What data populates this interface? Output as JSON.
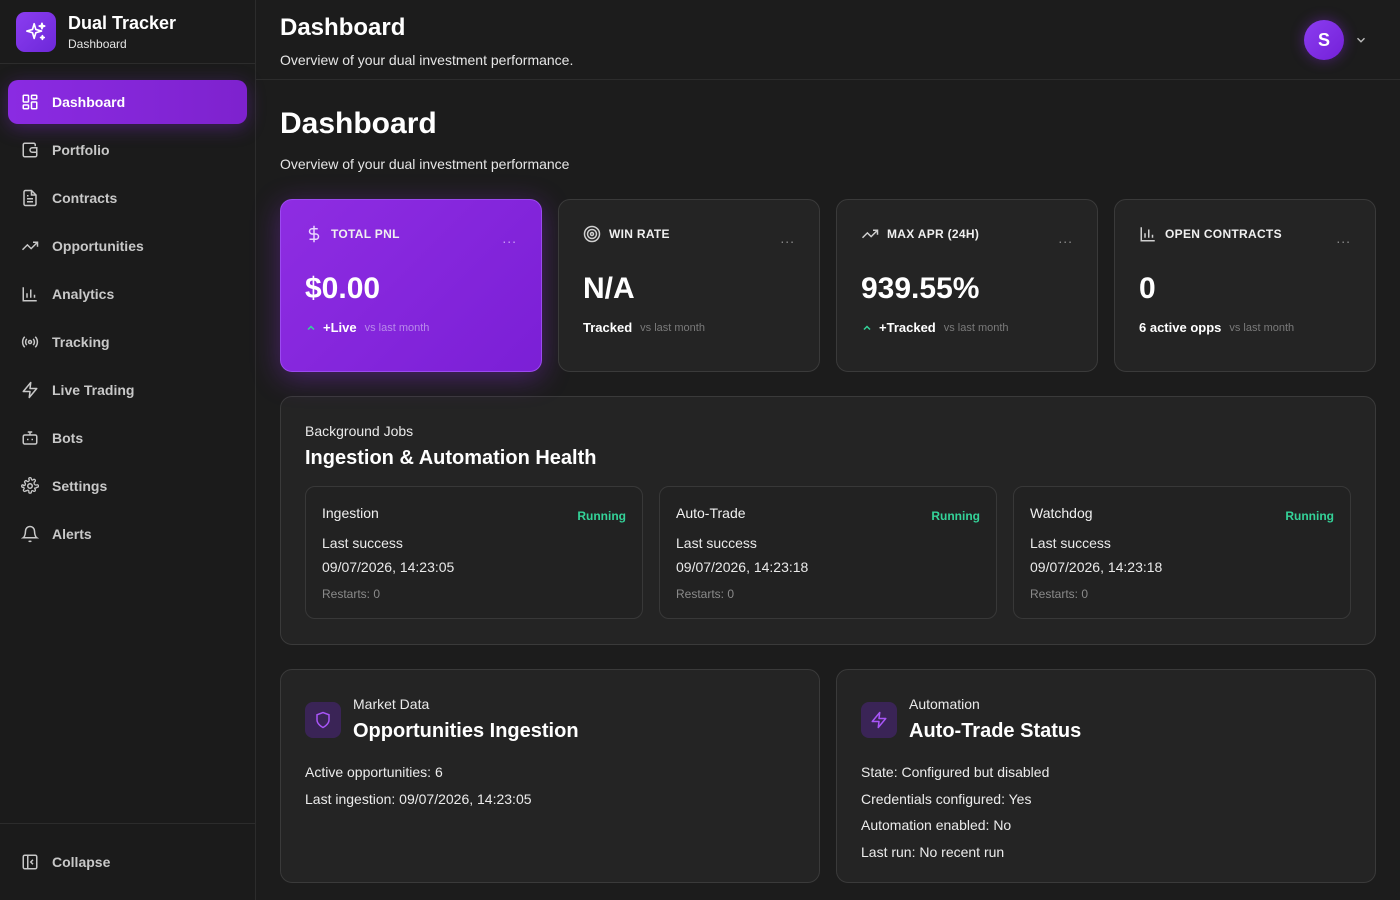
{
  "brand": {
    "title": "Dual Tracker",
    "subtitle": "Dashboard"
  },
  "sidebar": {
    "items": [
      {
        "label": "Dashboard",
        "icon": "grid-icon",
        "active": true
      },
      {
        "label": "Portfolio",
        "icon": "wallet-icon"
      },
      {
        "label": "Contracts",
        "icon": "document-icon"
      },
      {
        "label": "Opportunities",
        "icon": "trending-up-icon"
      },
      {
        "label": "Analytics",
        "icon": "bar-chart-icon"
      },
      {
        "label": "Tracking",
        "icon": "radio-waves-icon"
      },
      {
        "label": "Live Trading",
        "icon": "lightning-icon"
      },
      {
        "label": "Bots",
        "icon": "bot-icon"
      },
      {
        "label": "Settings",
        "icon": "gear-icon"
      },
      {
        "label": "Alerts",
        "icon": "bell-icon"
      }
    ],
    "collapse_label": "Collapse"
  },
  "header": {
    "title": "Dashboard",
    "subtitle": "Overview of your dual investment performance.",
    "avatar_initial": "S"
  },
  "page": {
    "title": "Dashboard",
    "subtitle": "Overview of your dual investment performance"
  },
  "stats": [
    {
      "label": "TOTAL PNL",
      "icon": "dollar-icon",
      "value": "$0.00",
      "change": "+Live",
      "vs": "vs last month",
      "trend_up": true
    },
    {
      "label": "WIN RATE",
      "icon": "target-icon",
      "value": "N/A",
      "change": "Tracked",
      "vs": "vs last month",
      "trend_up": false
    },
    {
      "label": "MAX APR (24H)",
      "icon": "trending-up-icon",
      "value": "939.55%",
      "change": "+Tracked",
      "vs": "vs last month",
      "trend_up": true
    },
    {
      "label": "OPEN CONTRACTS",
      "icon": "bar-chart-icon",
      "value": "0",
      "change": "6 active opps",
      "vs": "vs last month",
      "trend_up": false
    }
  ],
  "stat_menu_glyph": "...",
  "jobs": {
    "kicker": "Background Jobs",
    "title": "Ingestion & Automation Health",
    "items": [
      {
        "name": "Ingestion",
        "status": "Running",
        "last_label": "Last success",
        "last_time": "09/07/2026, 14:23:05",
        "restarts": "Restarts: 0"
      },
      {
        "name": "Auto-Trade",
        "status": "Running",
        "last_label": "Last success",
        "last_time": "09/07/2026, 14:23:18",
        "restarts": "Restarts: 0"
      },
      {
        "name": "Watchdog",
        "status": "Running",
        "last_label": "Last success",
        "last_time": "09/07/2026, 14:23:18",
        "restarts": "Restarts: 0"
      }
    ]
  },
  "market": {
    "kicker": "Market Data",
    "title": "Opportunities Ingestion",
    "icon": "shield-icon",
    "lines": [
      "Active opportunities: 6",
      "Last ingestion: 09/07/2026, 14:23:05"
    ]
  },
  "automation": {
    "kicker": "Automation",
    "title": "Auto-Trade Status",
    "icon": "lightning-icon",
    "lines": [
      "State: Configured but disabled",
      "Credentials configured: Yes",
      "Automation enabled: No",
      "Last run: No recent run"
    ]
  },
  "colors": {
    "accent": "#8a2be2",
    "running": "#34d399",
    "background": "#1c1c1c",
    "card": "#242424"
  }
}
